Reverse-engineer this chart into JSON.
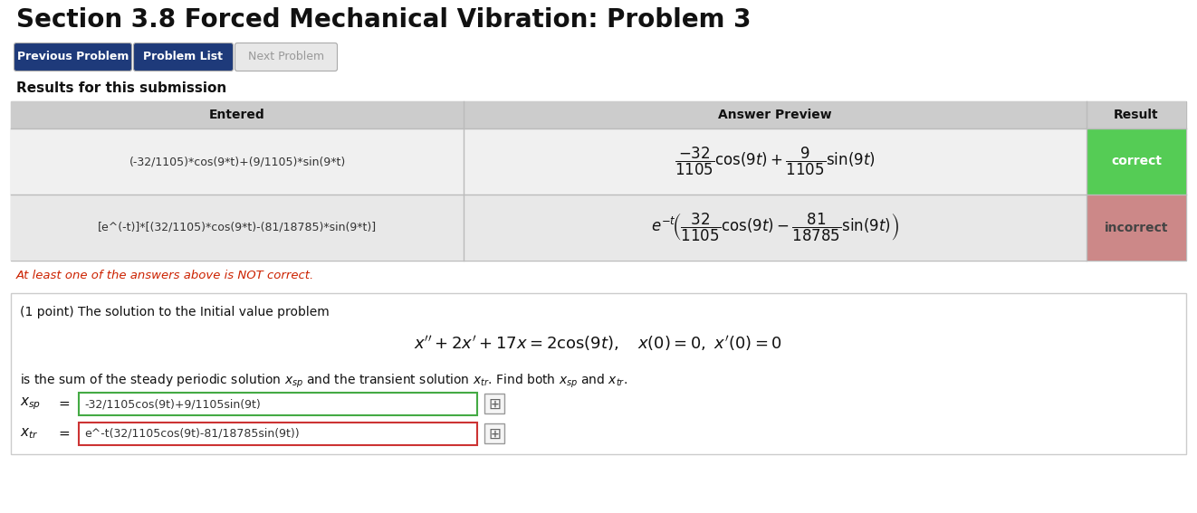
{
  "title": "Section 3.8 Forced Mechanical Vibration: Problem 3",
  "bg_color": "#ffffff",
  "btn1_text": "Previous Problem",
  "btn2_text": "Problem List",
  "btn3_text": "Next Problem",
  "btn1_color": "#1e3a7a",
  "btn2_color": "#1e3a7a",
  "btn3_color": "#e8e8e8",
  "btn3_text_color": "#999999",
  "results_label": "Results for this submission",
  "table_header_bg": "#cccccc",
  "table_row1_bg": "#f0f0f0",
  "table_row2_bg": "#e8e8e8",
  "table_col1": "Entered",
  "table_col2": "Answer Preview",
  "table_col3": "Result",
  "row1_entered": "(-32/1105)*cos(9*t)+(9/1105)*sin(9*t)",
  "row1_result": "correct",
  "row1_result_bg": "#55cc55",
  "row1_result_text": "#ffffff",
  "row2_entered": "[e^(-t)]*[(32/1105)*cos(9*t)-(81/18785)*sin(9*t)]",
  "row2_result": "incorrect",
  "row2_result_bg": "#cc8888",
  "row2_result_text": "#444444",
  "warning_text": "At least one of the answers above is NOT correct.",
  "warning_color": "#cc2200",
  "problem_box_border": "#cccccc",
  "problem_box_bg": "#ffffff",
  "point_text": "(1 point) The solution to the Initial value problem",
  "body_text": "is the sum of the steady periodic solution ",
  "xsp_value": "-32/1105cos(9t)+9/1105sin(9t)",
  "xsp_border": "#44aa44",
  "xtr_value": "e^-t(32/1105cos(9t)-81/18785sin(9t))",
  "xtr_border": "#cc3333",
  "table_border": "#bbbbbb"
}
